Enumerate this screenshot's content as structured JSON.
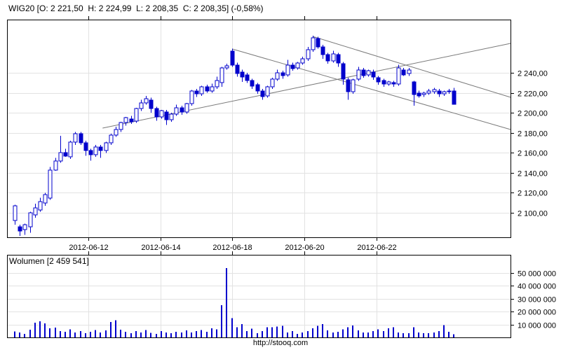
{
  "header": {
    "title": "WIG20 [O: 2 221,50  H: 2 224,99  L: 2 208,35  C: 2 208,35] (-0,58%)",
    "symbol": "WIG20",
    "open": "2 221,50",
    "high": "2 224,99",
    "low": "2 208,35",
    "close": "2 208,35",
    "change_pct": "-0,58%"
  },
  "volume_panel": {
    "title": "Wolumen [2 459 541]",
    "current_volume": "2 459 541"
  },
  "footer": {
    "url": "http://stooq.com"
  },
  "colors": {
    "candle": "#0000cc",
    "grid": "#e2e2e2",
    "frame": "#000000",
    "trend_line": "#7a7a7a",
    "text": "#000000",
    "background": "#ffffff"
  },
  "chart_data": [
    {
      "type": "candlestick",
      "title": "WIG20",
      "legend_position": "none",
      "grid": true,
      "y_axis_side": "right",
      "ylim": [
        2076,
        2293
      ],
      "price_ticks": [
        {
          "label": "2 100,00",
          "value": 2100
        },
        {
          "label": "2 120,00",
          "value": 2120
        },
        {
          "label": "2 140,00",
          "value": 2140
        },
        {
          "label": "2 160,00",
          "value": 2160
        },
        {
          "label": "2 180,00",
          "value": 2180
        },
        {
          "label": "2 200,00",
          "value": 2200
        },
        {
          "label": "2 220,00",
          "value": 2220
        },
        {
          "label": "2 240,00",
          "value": 2240
        }
      ],
      "date_ticks": [
        {
          "label": "2012-06-12",
          "index": 14.6
        },
        {
          "label": "2012-06-14",
          "index": 28.9
        },
        {
          "label": "2012-06-18",
          "index": 43.1
        },
        {
          "label": "2012-06-20",
          "index": 57.3
        },
        {
          "label": "2012-06-22",
          "index": 71.6
        }
      ],
      "trend_lines": [
        {
          "x1_index": 17.4,
          "price1": 2184.7,
          "x2_index": 98.2,
          "price2": 2269.4
        },
        {
          "x1_index": 43.1,
          "price1": 2263.8,
          "x2_index": 98.2,
          "price2": 2183.3
        },
        {
          "x1_index": 59.0,
          "price1": 2276.4,
          "x2_index": 98.2,
          "price2": 2215.5
        }
      ],
      "candles_format": [
        "open",
        "high",
        "low",
        "close",
        "volume_millions"
      ],
      "candles": [
        [
          2092,
          2108,
          2088,
          2107,
          4.5
        ],
        [
          2086,
          2088,
          2077,
          2082,
          3.9
        ],
        [
          2083,
          2089,
          2078,
          2088,
          2.7
        ],
        [
          2086,
          2101,
          2080,
          2100,
          6.0
        ],
        [
          2098,
          2109,
          2095,
          2105,
          11.5
        ],
        [
          2103,
          2115,
          2101,
          2111,
          12.5
        ],
        [
          2110,
          2120,
          2107,
          2118,
          11.0
        ],
        [
          2115,
          2146,
          2113,
          2143,
          7.1
        ],
        [
          2143,
          2155,
          2142,
          2152,
          7.5
        ],
        [
          2152,
          2177,
          2150,
          2160,
          5.0
        ],
        [
          2160,
          2164,
          2156,
          2157,
          4.4
        ],
        [
          2156,
          2172,
          2154,
          2171,
          6.2
        ],
        [
          2171,
          2181,
          2168,
          2179,
          3.9
        ],
        [
          2179,
          2181,
          2168,
          2170,
          5.0
        ],
        [
          2170,
          2172,
          2157,
          2162,
          3.2
        ],
        [
          2162,
          2164,
          2152,
          2158,
          4.4
        ],
        [
          2158,
          2168,
          2156,
          2166,
          5.7
        ],
        [
          2166,
          2168,
          2155,
          2162,
          3.9
        ],
        [
          2162,
          2171,
          2160,
          2170,
          5.3
        ],
        [
          2170,
          2179,
          2168,
          2178,
          12.0
        ],
        [
          2178,
          2186,
          2176,
          2183,
          13.4
        ],
        [
          2183,
          2191,
          2181,
          2190,
          6.0
        ],
        [
          2190,
          2196,
          2187,
          2195,
          4.4
        ],
        [
          2194,
          2197,
          2189,
          2191,
          3.2
        ],
        [
          2192,
          2205,
          2190,
          2204,
          5.0
        ],
        [
          2204,
          2213,
          2202,
          2210,
          3.9
        ],
        [
          2210,
          2217,
          2208,
          2214,
          5.7
        ],
        [
          2213,
          2215,
          2200,
          2204,
          3.5
        ],
        [
          2204,
          2206,
          2192,
          2196,
          2.7
        ],
        [
          2196,
          2203,
          2194,
          2202,
          5.0
        ],
        [
          2201,
          2203,
          2188,
          2193,
          3.9
        ],
        [
          2193,
          2200,
          2191,
          2199,
          3.2
        ],
        [
          2199,
          2208,
          2197,
          2205,
          4.4
        ],
        [
          2205,
          2207,
          2198,
          2201,
          3.9
        ],
        [
          2201,
          2210,
          2199,
          2209,
          5.3
        ],
        [
          2209,
          2223,
          2207,
          2222,
          3.9
        ],
        [
          2222,
          2224,
          2216,
          2219,
          5.0
        ],
        [
          2219,
          2227,
          2217,
          2226,
          5.7
        ],
        [
          2226,
          2228,
          2220,
          2222,
          4.4
        ],
        [
          2222,
          2229,
          2220,
          2226,
          7.0
        ],
        [
          2226,
          2236,
          2224,
          2232,
          6.2
        ],
        [
          2230,
          2246,
          2226,
          2245,
          24.9
        ],
        [
          2245,
          2249,
          2243,
          2247,
          53.8
        ],
        [
          2262,
          2264,
          2246,
          2248,
          15.0
        ],
        [
          2248,
          2250,
          2236,
          2239,
          8.0
        ],
        [
          2241,
          2243,
          2231,
          2236,
          10.2
        ],
        [
          2238,
          2240,
          2230,
          2232,
          5.0
        ],
        [
          2232,
          2234,
          2224,
          2227,
          6.9
        ],
        [
          2228,
          2230,
          2219,
          2222,
          3.2
        ],
        [
          2222,
          2224,
          2213,
          2216,
          5.0
        ],
        [
          2217,
          2227,
          2215,
          2226,
          8.0
        ],
        [
          2226,
          2235,
          2224,
          2234,
          8.0
        ],
        [
          2234,
          2243,
          2232,
          2240,
          8.5
        ],
        [
          2240,
          2242,
          2234,
          2237,
          8.9
        ],
        [
          2238,
          2253,
          2236,
          2248,
          3.9
        ],
        [
          2248,
          2250,
          2242,
          2244,
          5.0
        ],
        [
          2245,
          2251,
          2243,
          2250,
          2.7
        ],
        [
          2250,
          2256,
          2248,
          2254,
          3.9
        ],
        [
          2254,
          2266,
          2252,
          2263,
          5.0
        ],
        [
          2263,
          2277,
          2261,
          2275,
          7.1
        ],
        [
          2274,
          2276,
          2264,
          2266,
          8.9
        ],
        [
          2266,
          2268,
          2254,
          2258,
          10.3
        ],
        [
          2258,
          2260,
          2249,
          2252,
          5.3
        ],
        [
          2252,
          2262,
          2250,
          2259,
          3.9
        ],
        [
          2258,
          2260,
          2246,
          2250,
          4.4
        ],
        [
          2249,
          2251,
          2228,
          2234,
          6.2
        ],
        [
          2233,
          2235,
          2213,
          2221,
          8.0
        ],
        [
          2221,
          2234,
          2219,
          2233,
          9.3
        ],
        [
          2234,
          2246,
          2232,
          2243,
          5.3
        ],
        [
          2243,
          2245,
          2235,
          2237,
          3.9
        ],
        [
          2238,
          2243,
          2236,
          2242,
          3.9
        ],
        [
          2241,
          2243,
          2233,
          2236,
          5.0
        ],
        [
          2235,
          2237,
          2228,
          2231,
          6.2
        ],
        [
          2232,
          2234,
          2226,
          2229,
          5.0
        ],
        [
          2229,
          2232,
          2227,
          2231,
          7.1
        ],
        [
          2230,
          2232,
          2226,
          2229,
          8.0
        ],
        [
          2229,
          2248,
          2227,
          2245,
          3.9
        ],
        [
          2243,
          2245,
          2237,
          2238,
          3.2
        ],
        [
          2239,
          2245,
          2237,
          2243,
          3.2
        ],
        [
          2231,
          2232,
          2207,
          2218,
          8.0
        ],
        [
          2220,
          2222,
          2215,
          2217,
          3.9
        ],
        [
          2218,
          2221,
          2216,
          2220,
          3.2
        ],
        [
          2220,
          2224,
          2218,
          2222,
          3.2
        ],
        [
          2221,
          2225,
          2219,
          2223,
          3.9
        ],
        [
          2222,
          2224,
          2216,
          2219,
          5.0
        ],
        [
          2219,
          2222,
          2217,
          2221,
          9.6
        ],
        [
          2221,
          2224,
          2219,
          2222,
          4.4
        ],
        [
          2221.5,
          2224.99,
          2208.35,
          2208.35,
          2.46
        ]
      ]
    },
    {
      "type": "bar",
      "title": "Wolumen",
      "grid": true,
      "y_axis_side": "right",
      "ylim_millions": [
        0,
        58
      ],
      "volume_ticks": [
        {
          "label": "10 000 000",
          "value": 10
        },
        {
          "label": "20 000 000",
          "value": 20
        },
        {
          "label": "30 000 000",
          "value": 30
        },
        {
          "label": "40 000 000",
          "value": 40
        },
        {
          "label": "50 000 000",
          "value": 50
        }
      ],
      "note": "values are the volume_millions column of chart_data[0].candles"
    }
  ]
}
